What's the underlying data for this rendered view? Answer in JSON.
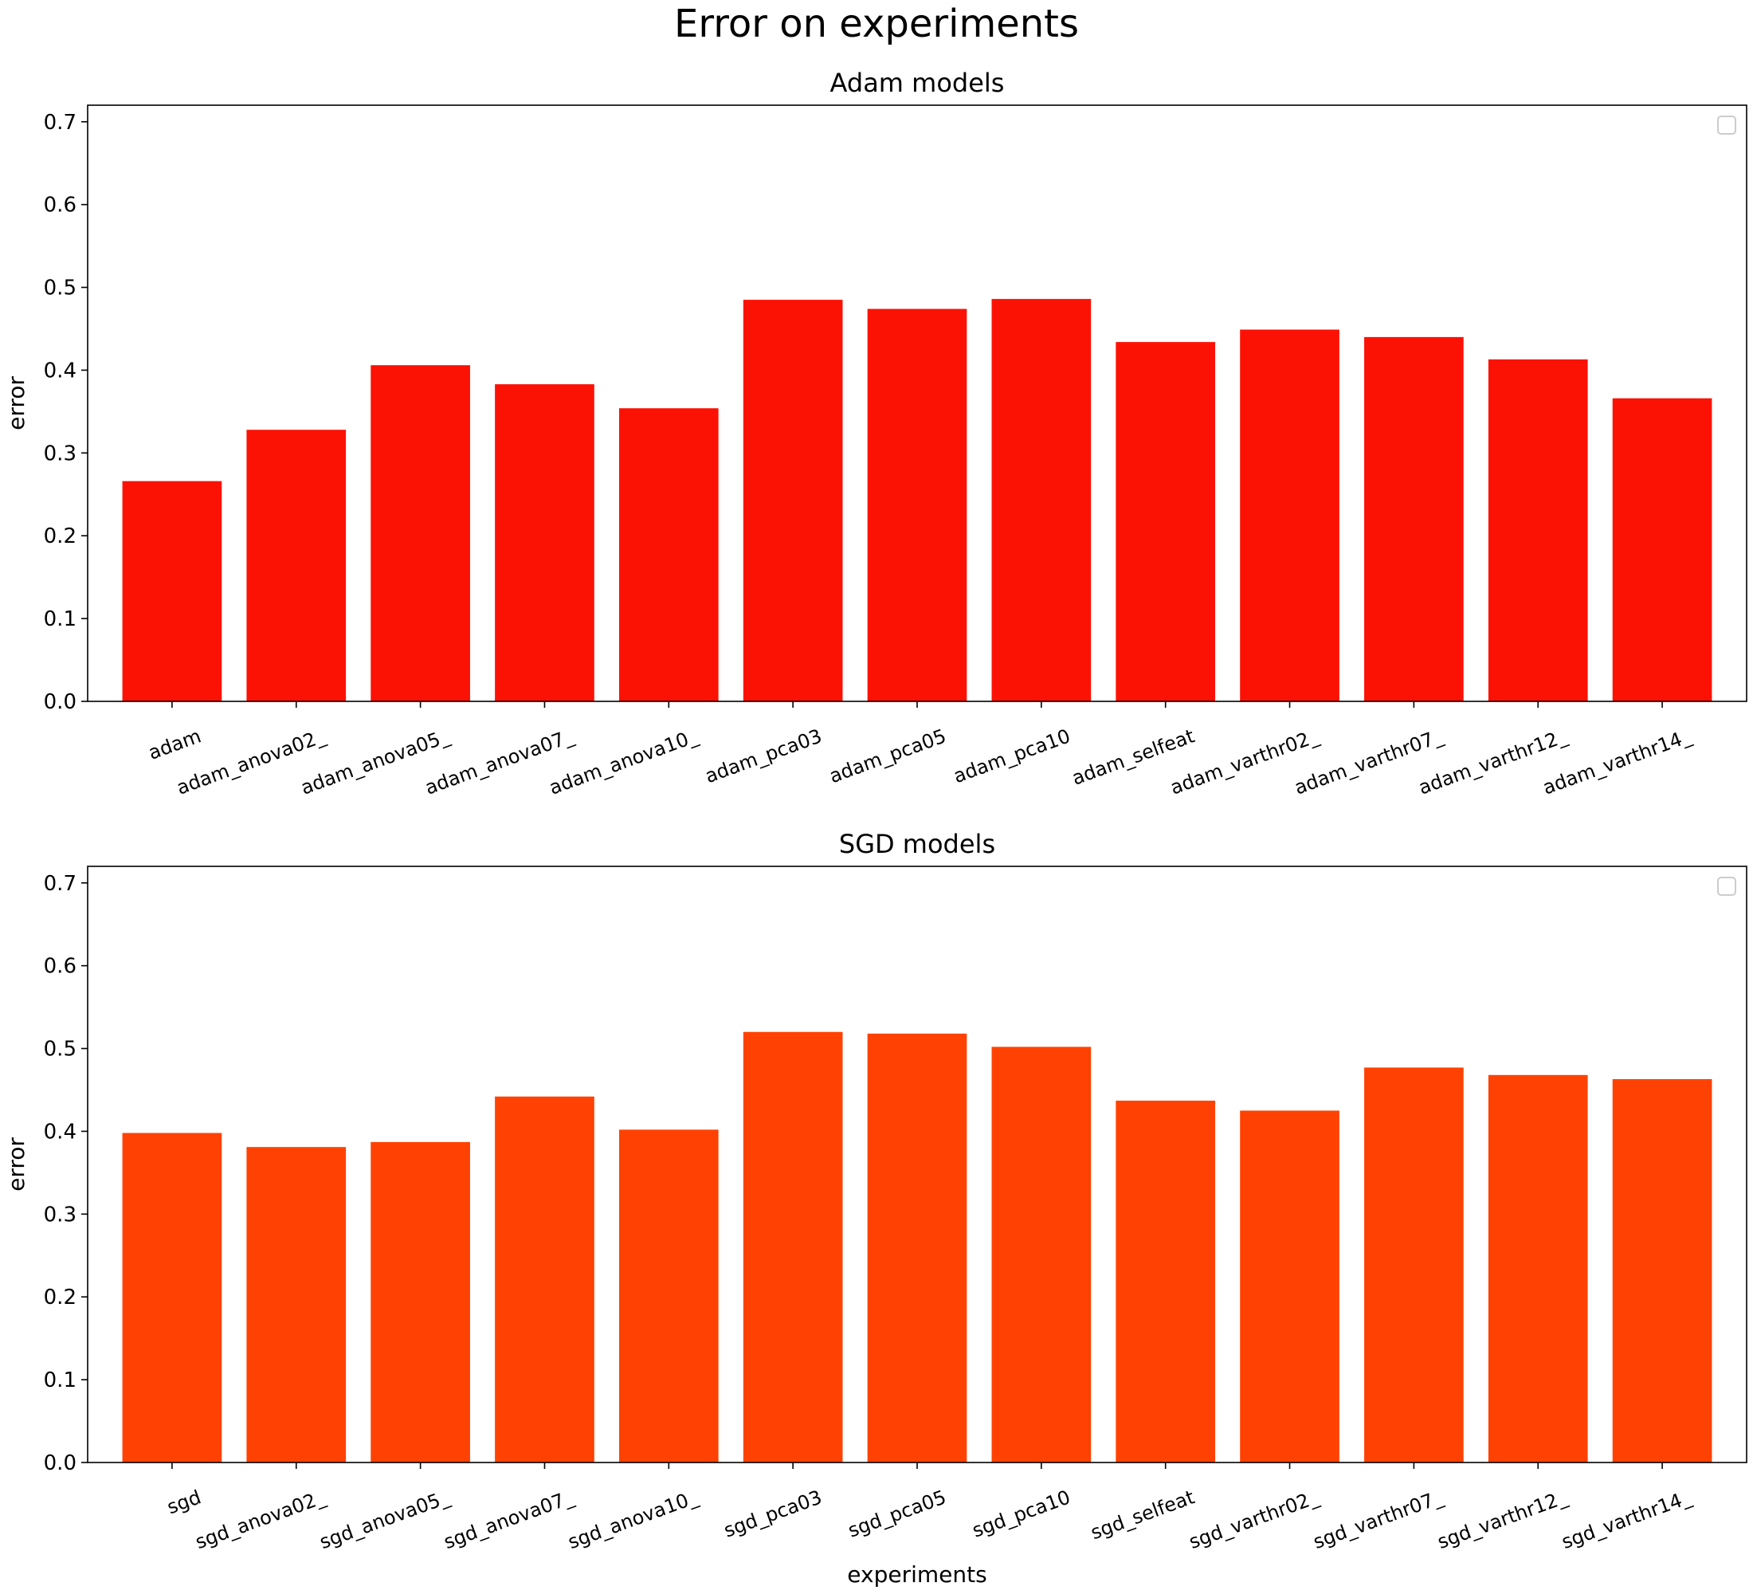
{
  "figure": {
    "title": "Error on experiments"
  },
  "chart_data": [
    {
      "type": "bar",
      "title": "Adam models",
      "xlabel": "",
      "ylabel": "error",
      "ylim": [
        0,
        0.72
      ],
      "yticks": [
        "0.0",
        "0.1",
        "0.2",
        "0.3",
        "0.4",
        "0.5",
        "0.6",
        "0.7"
      ],
      "grid": false,
      "legend": "upper right (empty)",
      "color": "#fc1205",
      "categories": [
        "adam",
        "adam_anova02_",
        "adam_anova05_",
        "adam_anova07_",
        "adam_anova10_",
        "adam_pca03",
        "adam_pca05",
        "adam_pca10",
        "adam_selfeat",
        "adam_varthr02_",
        "adam_varthr07_",
        "adam_varthr12_",
        "adam_varthr14_"
      ],
      "values": [
        0.266,
        0.328,
        0.406,
        0.383,
        0.354,
        0.485,
        0.474,
        0.486,
        0.434,
        0.449,
        0.44,
        0.413,
        0.366
      ]
    },
    {
      "type": "bar",
      "title": "SGD models",
      "xlabel": "experiments",
      "ylabel": "error",
      "ylim": [
        0,
        0.72
      ],
      "yticks": [
        "0.0",
        "0.1",
        "0.2",
        "0.3",
        "0.4",
        "0.5",
        "0.6",
        "0.7"
      ],
      "grid": false,
      "legend": "upper right (empty)",
      "color": "#ff4203",
      "categories": [
        "sgd",
        "sgd_anova02_",
        "sgd_anova05_",
        "sgd_anova07_",
        "sgd_anova10_",
        "sgd_pca03",
        "sgd_pca05",
        "sgd_pca10",
        "sgd_selfeat",
        "sgd_varthr02_",
        "sgd_varthr07_",
        "sgd_varthr12_",
        "sgd_varthr14_"
      ],
      "values": [
        0.398,
        0.381,
        0.387,
        0.442,
        0.402,
        0.52,
        0.518,
        0.502,
        0.437,
        0.425,
        0.477,
        0.468,
        0.463
      ]
    }
  ]
}
